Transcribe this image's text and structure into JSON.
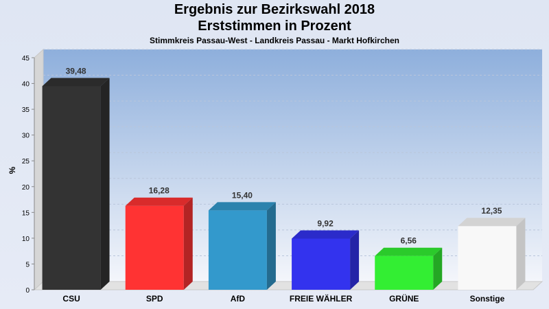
{
  "chart_data": {
    "type": "bar",
    "title_line1": "Ergebnis zur Bezirkswahl 2018",
    "title_line2": "Erststimmen in Prozent",
    "subtitle": "Stimmkreis Passau-West - Landkreis Passau - Markt Hofkirchen",
    "ylabel": "%",
    "xlabel": "",
    "ylim": [
      0,
      45
    ],
    "yticks": [
      0,
      5,
      10,
      15,
      20,
      25,
      30,
      35,
      40,
      45
    ],
    "grid": true,
    "categories": [
      "CSU",
      "SPD",
      "AfD",
      "FREIE WÄHLER",
      "GRÜNE",
      "Sonstige"
    ],
    "values": [
      39.48,
      16.28,
      15.4,
      9.92,
      6.56,
      12.35
    ],
    "value_labels": [
      "39,48",
      "16,28",
      "15,40",
      "9,92",
      "6,56",
      "12,35"
    ],
    "colors": [
      "#333333",
      "#ff3333",
      "#3399cc",
      "#3333ee",
      "#33ee33",
      "#f8f8f8"
    ]
  }
}
